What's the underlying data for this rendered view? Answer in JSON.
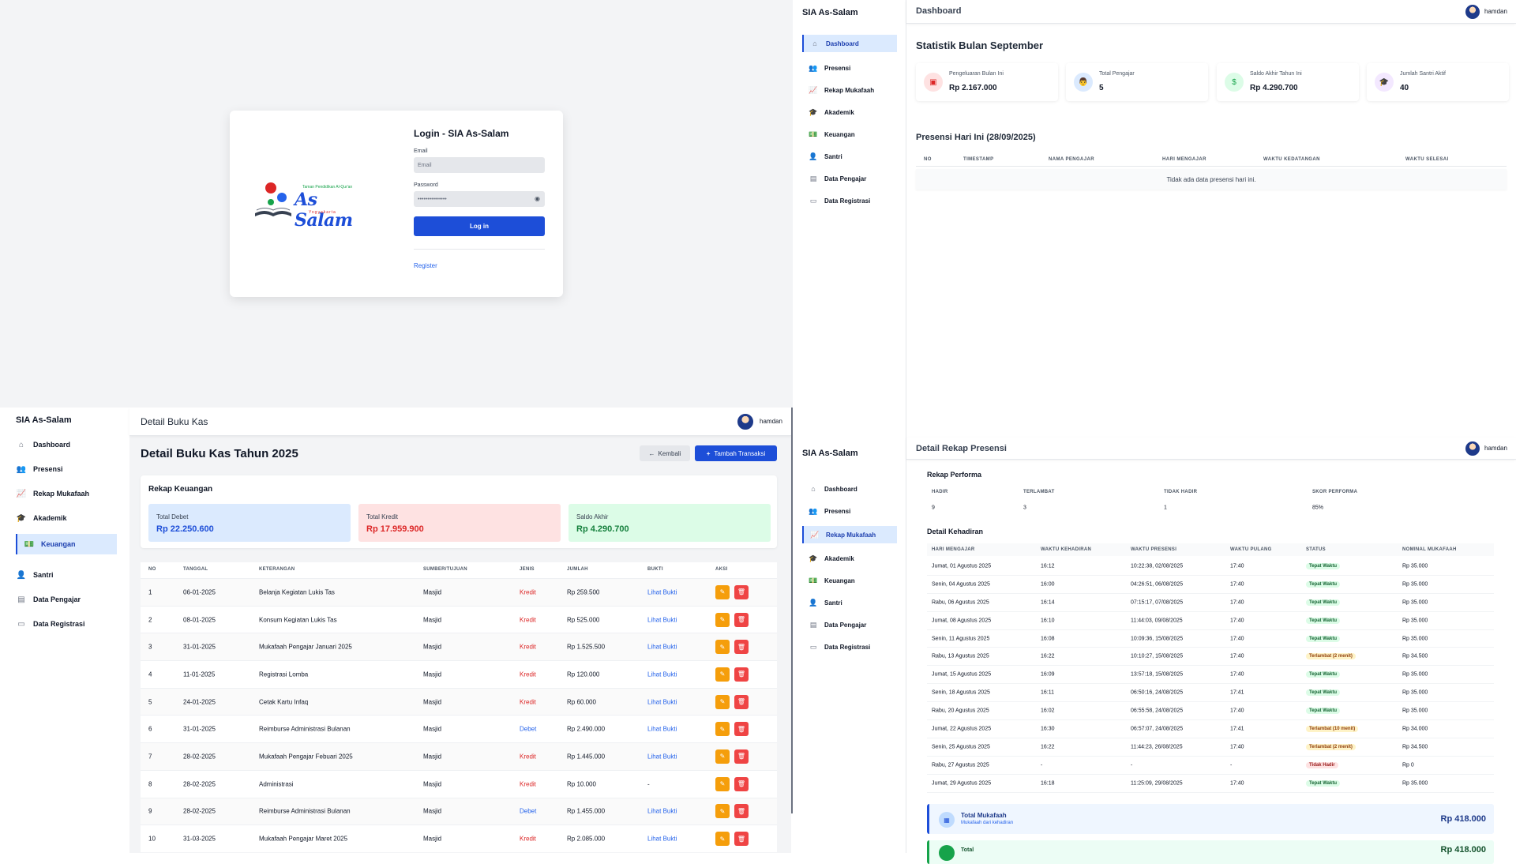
{
  "login": {
    "logo_tagline": "Taman Pendidikan Al-Qur'an",
    "logo_name": "As Salam",
    "logo_city": "Yogyakarta",
    "title": "Login - SIA As-Salam",
    "email_label": "Email",
    "email_placeholder": "Email",
    "password_label": "Password",
    "password_value": "•••••••••••••••",
    "login_button": "Log in",
    "register_link": "Register"
  },
  "dashboard": {
    "brand": "SIA As-Salam",
    "header_title": "Dashboard",
    "user_name": "hamdan",
    "sidebar": [
      {
        "label": "Dashboard",
        "icon": "home-icon",
        "glyph": "⌂"
      },
      {
        "label": "Presensi",
        "icon": "users-icon",
        "glyph": "👥"
      },
      {
        "label": "Rekap Mukafaah",
        "icon": "chart-line-icon",
        "glyph": "📈"
      },
      {
        "label": "Akademik",
        "icon": "graduation-cap-icon",
        "glyph": "🎓"
      },
      {
        "label": "Keuangan",
        "icon": "money-icon",
        "glyph": "💵"
      },
      {
        "label": "Santri",
        "icon": "user-tie-icon",
        "glyph": "👤"
      },
      {
        "label": "Data Pengajar",
        "icon": "database-icon",
        "glyph": "▤"
      },
      {
        "label": "Data Registrasi",
        "icon": "id-card-icon",
        "glyph": "▭"
      }
    ],
    "stats_title": "Statistik Bulan September",
    "stats": [
      {
        "label": "Pengeluaran Bulan Ini",
        "value": "Rp 2.167.000",
        "icon": "wallet-icon",
        "glyph": "▣",
        "color": "#dc2626",
        "bg": "#fee2e2"
      },
      {
        "label": "Total Pengajar",
        "value": "5",
        "icon": "chalkboard-teacher-icon",
        "glyph": "👨",
        "color": "#2563eb",
        "bg": "#dbeafe"
      },
      {
        "label": "Saldo Akhir Tahun Ini",
        "value": "Rp 4.290.700",
        "icon": "money-bill-icon",
        "glyph": "$",
        "color": "#16a34a",
        "bg": "#dcfce7"
      },
      {
        "label": "Jumlah Santri Aktif",
        "value": "40",
        "icon": "user-graduate-icon",
        "glyph": "🎓",
        "color": "#9333ea",
        "bg": "#f3e8ff"
      }
    ],
    "presensi_title": "Presensi Hari Ini (28/09/2025)",
    "presensi_columns": [
      "NO",
      "TIMESTAMP",
      "NAMA PENGAJAR",
      "HARI MENGAJAR",
      "WAKTU KEDATANGAN",
      "WAKTU SELESAI"
    ],
    "presensi_empty": "Tidak ada data presensi hari ini."
  },
  "bukukas": {
    "brand": "SIA As-Salam",
    "header_title": "Detail Buku Kas",
    "user_name": "hamdan",
    "sidebar": [
      {
        "label": "Dashboard",
        "icon": "home-icon",
        "glyph": "⌂"
      },
      {
        "label": "Presensi",
        "icon": "users-icon",
        "glyph": "👥"
      },
      {
        "label": "Rekap Mukafaah",
        "icon": "chart-line-icon",
        "glyph": "📈"
      },
      {
        "label": "Akademik",
        "icon": "graduation-cap-icon",
        "glyph": "🎓"
      },
      {
        "label": "Keuangan",
        "icon": "money-icon",
        "glyph": "💵"
      },
      {
        "label": "Santri",
        "icon": "user-tie-icon",
        "glyph": "👤"
      },
      {
        "label": "Data Pengajar",
        "icon": "database-icon",
        "glyph": "▤"
      },
      {
        "label": "Data Registrasi",
        "icon": "id-card-icon",
        "glyph": "▭"
      }
    ],
    "page_title": "Detail Buku Kas Tahun 2025",
    "back_button": "Kembali",
    "add_button": "Tambah Transaksi",
    "rekap_title": "Rekap Keuangan",
    "rekap": [
      {
        "label": "Total Debet",
        "value": "Rp 22.250.600",
        "bg": "#dbeafe",
        "color": "#1d4ed8"
      },
      {
        "label": "Total Kredit",
        "value": "Rp 17.959.900",
        "bg": "#fee2e2",
        "color": "#dc2626"
      },
      {
        "label": "Saldo Akhir",
        "value": "Rp 4.290.700",
        "bg": "#dcfce7",
        "color": "#15803d"
      }
    ],
    "columns": [
      "NO",
      "TANGGAL",
      "KETERANGAN",
      "SUMBER/TUJUAN",
      "JENIS",
      "JUMLAH",
      "BUKTI",
      "AKSI"
    ],
    "rows": [
      {
        "no": "1",
        "tanggal": "06-01-2025",
        "keterangan": "Belanja Kegiatan Lukis Tas",
        "sumber": "Masjid",
        "jenis": "Kredit",
        "jumlah": "Rp 259.500",
        "bukti": "Lihat Bukti"
      },
      {
        "no": "2",
        "tanggal": "08-01-2025",
        "keterangan": "Konsum Kegiatan Lukis Tas",
        "sumber": "Masjid",
        "jenis": "Kredit",
        "jumlah": "Rp 525.000",
        "bukti": "Lihat Bukti"
      },
      {
        "no": "3",
        "tanggal": "31-01-2025",
        "keterangan": "Mukafaah Pengajar Januari 2025",
        "sumber": "Masjid",
        "jenis": "Kredit",
        "jumlah": "Rp 1.525.500",
        "bukti": "Lihat Bukti"
      },
      {
        "no": "4",
        "tanggal": "11-01-2025",
        "keterangan": "Registrasi Lomba",
        "sumber": "Masjid",
        "jenis": "Kredit",
        "jumlah": "Rp 120.000",
        "bukti": "Lihat Bukti"
      },
      {
        "no": "5",
        "tanggal": "24-01-2025",
        "keterangan": "Cetak Kartu Infaq",
        "sumber": "Masjid",
        "jenis": "Kredit",
        "jumlah": "Rp 60.000",
        "bukti": "Lihat Bukti"
      },
      {
        "no": "6",
        "tanggal": "31-01-2025",
        "keterangan": "Reimburse Administrasi Bulanan",
        "sumber": "Masjid",
        "jenis": "Debet",
        "jumlah": "Rp 2.490.000",
        "bukti": "Lihat Bukti"
      },
      {
        "no": "7",
        "tanggal": "28-02-2025",
        "keterangan": "Mukafaah Pengajar Febuari 2025",
        "sumber": "Masjid",
        "jenis": "Kredit",
        "jumlah": "Rp 1.445.000",
        "bukti": "Lihat Bukti"
      },
      {
        "no": "8",
        "tanggal": "28-02-2025",
        "keterangan": "Administrasi",
        "sumber": "Masjid",
        "jenis": "Kredit",
        "jumlah": "Rp 10.000",
        "bukti": "-"
      },
      {
        "no": "9",
        "tanggal": "28-02-2025",
        "keterangan": "Reimburse Administrasi Bulanan",
        "sumber": "Masjid",
        "jenis": "Debet",
        "jumlah": "Rp 1.455.000",
        "bukti": "Lihat Bukti"
      },
      {
        "no": "10",
        "tanggal": "31-03-2025",
        "keterangan": "Mukafaah Pengajar Maret 2025",
        "sumber": "Masjid",
        "jenis": "Kredit",
        "jumlah": "Rp 2.085.000",
        "bukti": "Lihat Bukti"
      }
    ],
    "colors": {
      "kredit": "#dc2626",
      "debet": "#2563eb"
    }
  },
  "rekap_presensi": {
    "brand": "SIA As-Salam",
    "header_title": "Detail Rekap Presensi",
    "user_name": "hamdan",
    "sidebar": [
      {
        "label": "Dashboard",
        "icon": "home-icon",
        "glyph": "⌂"
      },
      {
        "label": "Presensi",
        "icon": "users-icon",
        "glyph": "👥"
      },
      {
        "label": "Rekap Mukafaah",
        "icon": "chart-line-icon",
        "glyph": "📈"
      },
      {
        "label": "Akademik",
        "icon": "graduation-cap-icon",
        "glyph": "🎓"
      },
      {
        "label": "Keuangan",
        "icon": "money-icon",
        "glyph": "💵"
      },
      {
        "label": "Santri",
        "icon": "user-tie-icon",
        "glyph": "👤"
      },
      {
        "label": "Data Pengajar",
        "icon": "database-icon",
        "glyph": "▤"
      },
      {
        "label": "Data Registrasi",
        "icon": "id-card-icon",
        "glyph": "▭"
      }
    ],
    "perf_title": "Rekap Performa",
    "perf_columns": [
      "HADIR",
      "TERLAMBAT",
      "TIDAK HADIR",
      "SKOR PERFORMA"
    ],
    "perf_values": [
      "9",
      "3",
      "1",
      "85%"
    ],
    "detail_title": "Detail Kehadiran",
    "detail_columns": [
      "HARI MENGAJAR",
      "WAKTU KEHADIRAN",
      "WAKTU PRESENSI",
      "WAKTU PULANG",
      "STATUS",
      "NOMINAL MUKAFAAH"
    ],
    "rows": [
      {
        "hari": "Jumat, 01 Agustus 2025",
        "hadir": "16:12",
        "presensi": "10:22:38, 02/08/2025",
        "pulang": "17:40",
        "status": "Tepat Waktu",
        "kind": "ok",
        "nominal": "Rp 35.000"
      },
      {
        "hari": "Senin, 04 Agustus 2025",
        "hadir": "16:00",
        "presensi": "04:26:51, 06/08/2025",
        "pulang": "17:40",
        "status": "Tepat Waktu",
        "kind": "ok",
        "nominal": "Rp 35.000"
      },
      {
        "hari": "Rabu, 06 Agustus 2025",
        "hadir": "16:14",
        "presensi": "07:15:17, 07/08/2025",
        "pulang": "17:40",
        "status": "Tepat Waktu",
        "kind": "ok",
        "nominal": "Rp 35.000"
      },
      {
        "hari": "Jumat, 08 Agustus 2025",
        "hadir": "16:10",
        "presensi": "11:44:03, 09/08/2025",
        "pulang": "17:40",
        "status": "Tepat Waktu",
        "kind": "ok",
        "nominal": "Rp 35.000"
      },
      {
        "hari": "Senin, 11 Agustus 2025",
        "hadir": "16:08",
        "presensi": "10:09:36, 15/08/2025",
        "pulang": "17:40",
        "status": "Tepat Waktu",
        "kind": "ok",
        "nominal": "Rp 35.000"
      },
      {
        "hari": "Rabu, 13 Agustus 2025",
        "hadir": "16:22",
        "presensi": "10:10:27, 15/08/2025",
        "pulang": "17:40",
        "status": "Terlambat (2 menit)",
        "kind": "late",
        "nominal": "Rp 34.500"
      },
      {
        "hari": "Jumat, 15 Agustus 2025",
        "hadir": "16:09",
        "presensi": "13:57:18, 15/08/2025",
        "pulang": "17:40",
        "status": "Tepat Waktu",
        "kind": "ok",
        "nominal": "Rp 35.000"
      },
      {
        "hari": "Senin, 18 Agustus 2025",
        "hadir": "16:11",
        "presensi": "06:50:16, 24/08/2025",
        "pulang": "17:41",
        "status": "Tepat Waktu",
        "kind": "ok",
        "nominal": "Rp 35.000"
      },
      {
        "hari": "Rabu, 20 Agustus 2025",
        "hadir": "16:02",
        "presensi": "06:55:58, 24/08/2025",
        "pulang": "17:40",
        "status": "Tepat Waktu",
        "kind": "ok",
        "nominal": "Rp 35.000"
      },
      {
        "hari": "Jumat, 22 Agustus 2025",
        "hadir": "16:30",
        "presensi": "06:57:07, 24/08/2025",
        "pulang": "17:41",
        "status": "Terlambat (10 menit)",
        "kind": "late",
        "nominal": "Rp 34.000"
      },
      {
        "hari": "Senin, 25 Agustus 2025",
        "hadir": "16:22",
        "presensi": "11:44:23, 26/08/2025",
        "pulang": "17:40",
        "status": "Terlambat (2 menit)",
        "kind": "late",
        "nominal": "Rp 34.500"
      },
      {
        "hari": "Rabu, 27 Agustus 2025",
        "hadir": "-",
        "presensi": "-",
        "pulang": "-",
        "status": "Tidak Hadir",
        "kind": "absent",
        "nominal": "Rp 0"
      },
      {
        "hari": "Jumat, 29 Agustus 2025",
        "hadir": "16:18",
        "presensi": "11:25:09, 29/08/2025",
        "pulang": "17:40",
        "status": "Tepat Waktu",
        "kind": "ok",
        "nominal": "Rp 35.000"
      }
    ],
    "total_label": "Total Mukafaah",
    "total_sub": "Mukafaah dari kehadiran",
    "total_value": "Rp 418.000",
    "total2_label": "Total",
    "total2_value": "Rp 418.000",
    "badge_colors": {
      "ok": {
        "bg": "#dcfce7",
        "fg": "#166534"
      },
      "late": {
        "bg": "#fef3c7",
        "fg": "#92400e"
      },
      "absent": {
        "bg": "#fee2e2",
        "fg": "#991b1b"
      }
    }
  }
}
